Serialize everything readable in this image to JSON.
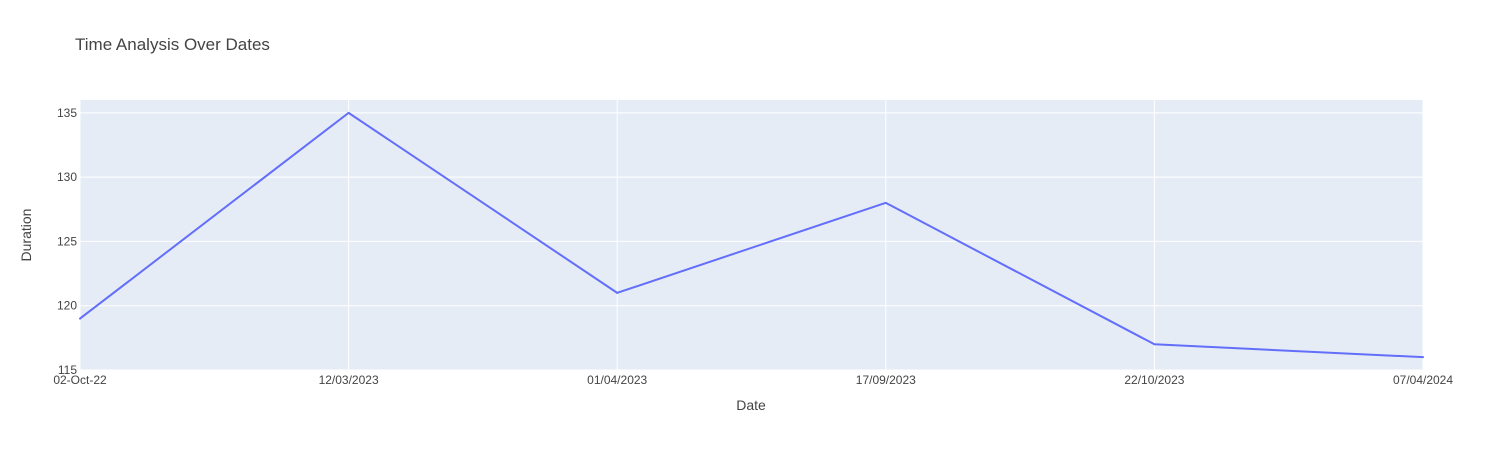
{
  "chart_data": {
    "type": "line",
    "title": "Time Analysis Over Dates",
    "xlabel": "Date",
    "ylabel": "Duration",
    "categories": [
      "02-Oct-22",
      "12/03/2023",
      "01/04/2023",
      "17/09/2023",
      "22/10/2023",
      "07/04/2024"
    ],
    "series": [
      {
        "values": [
          119,
          135,
          121,
          128,
          117,
          116
        ]
      }
    ],
    "ylim": [
      115,
      136
    ],
    "yticks": [
      115,
      120,
      125,
      130,
      135
    ],
    "grid": true,
    "colors": {
      "line": "#636efa",
      "plot_bg": "#e5ecf6",
      "grid": "#ffffff",
      "text": "#444444"
    }
  }
}
